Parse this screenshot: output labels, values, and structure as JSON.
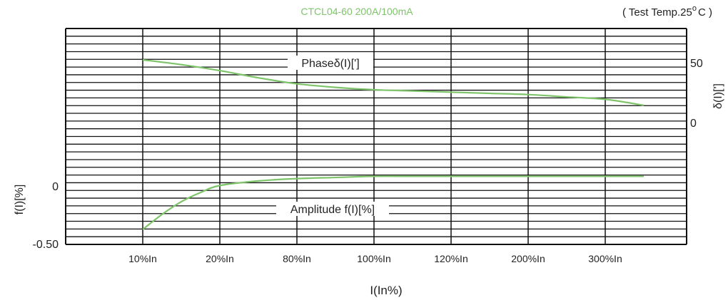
{
  "header": {
    "subtitle": "CTCL04-60  200A/100mA",
    "temp_prefix": "( Test  Temp.25",
    "temp_deg": "o",
    "temp_suffix": "C )"
  },
  "colors": {
    "curve": "#7ec46a",
    "subtitle": "#7ec46a",
    "grid": "#111111",
    "text": "#222222"
  },
  "chart_data": {
    "type": "line",
    "xlabel": "I(In%)",
    "categories": [
      "10%In",
      "20%In",
      "80%In",
      "100%In",
      "120%In",
      "200%In",
      "300%In"
    ],
    "left_axis": {
      "label": "f(I)[%]",
      "ticks": [
        "0",
        "-0.50"
      ],
      "range": [
        -0.5,
        0.5
      ]
    },
    "right_axis": {
      "label": "δ(I)[']",
      "ticks": [
        "50",
        "0"
      ],
      "range": [
        -100,
        100
      ]
    },
    "series": [
      {
        "name": "Phaseδ(I)[']",
        "axis": "right",
        "x": [
          0,
          0.5,
          1,
          1.5,
          2,
          2.5,
          3,
          3.5,
          4,
          4.5,
          5,
          5.5,
          6,
          6.5
        ],
        "values": [
          53,
          49,
          44,
          38,
          33,
          30,
          28,
          27,
          26,
          25,
          24,
          22,
          20,
          15
        ]
      },
      {
        "name": "Amplitude f(I)[%]",
        "axis": "left",
        "x": [
          0,
          0.25,
          0.5,
          0.75,
          1,
          1.5,
          2,
          2.5,
          3,
          3.5,
          4,
          4.5,
          5,
          5.5,
          6,
          6.5
        ],
        "values": [
          -0.37,
          -0.24,
          -0.13,
          -0.05,
          0.01,
          0.05,
          0.07,
          0.08,
          0.09,
          0.09,
          0.09,
          0.09,
          0.09,
          0.09,
          0.09,
          0.09
        ]
      }
    ],
    "grid": true
  }
}
